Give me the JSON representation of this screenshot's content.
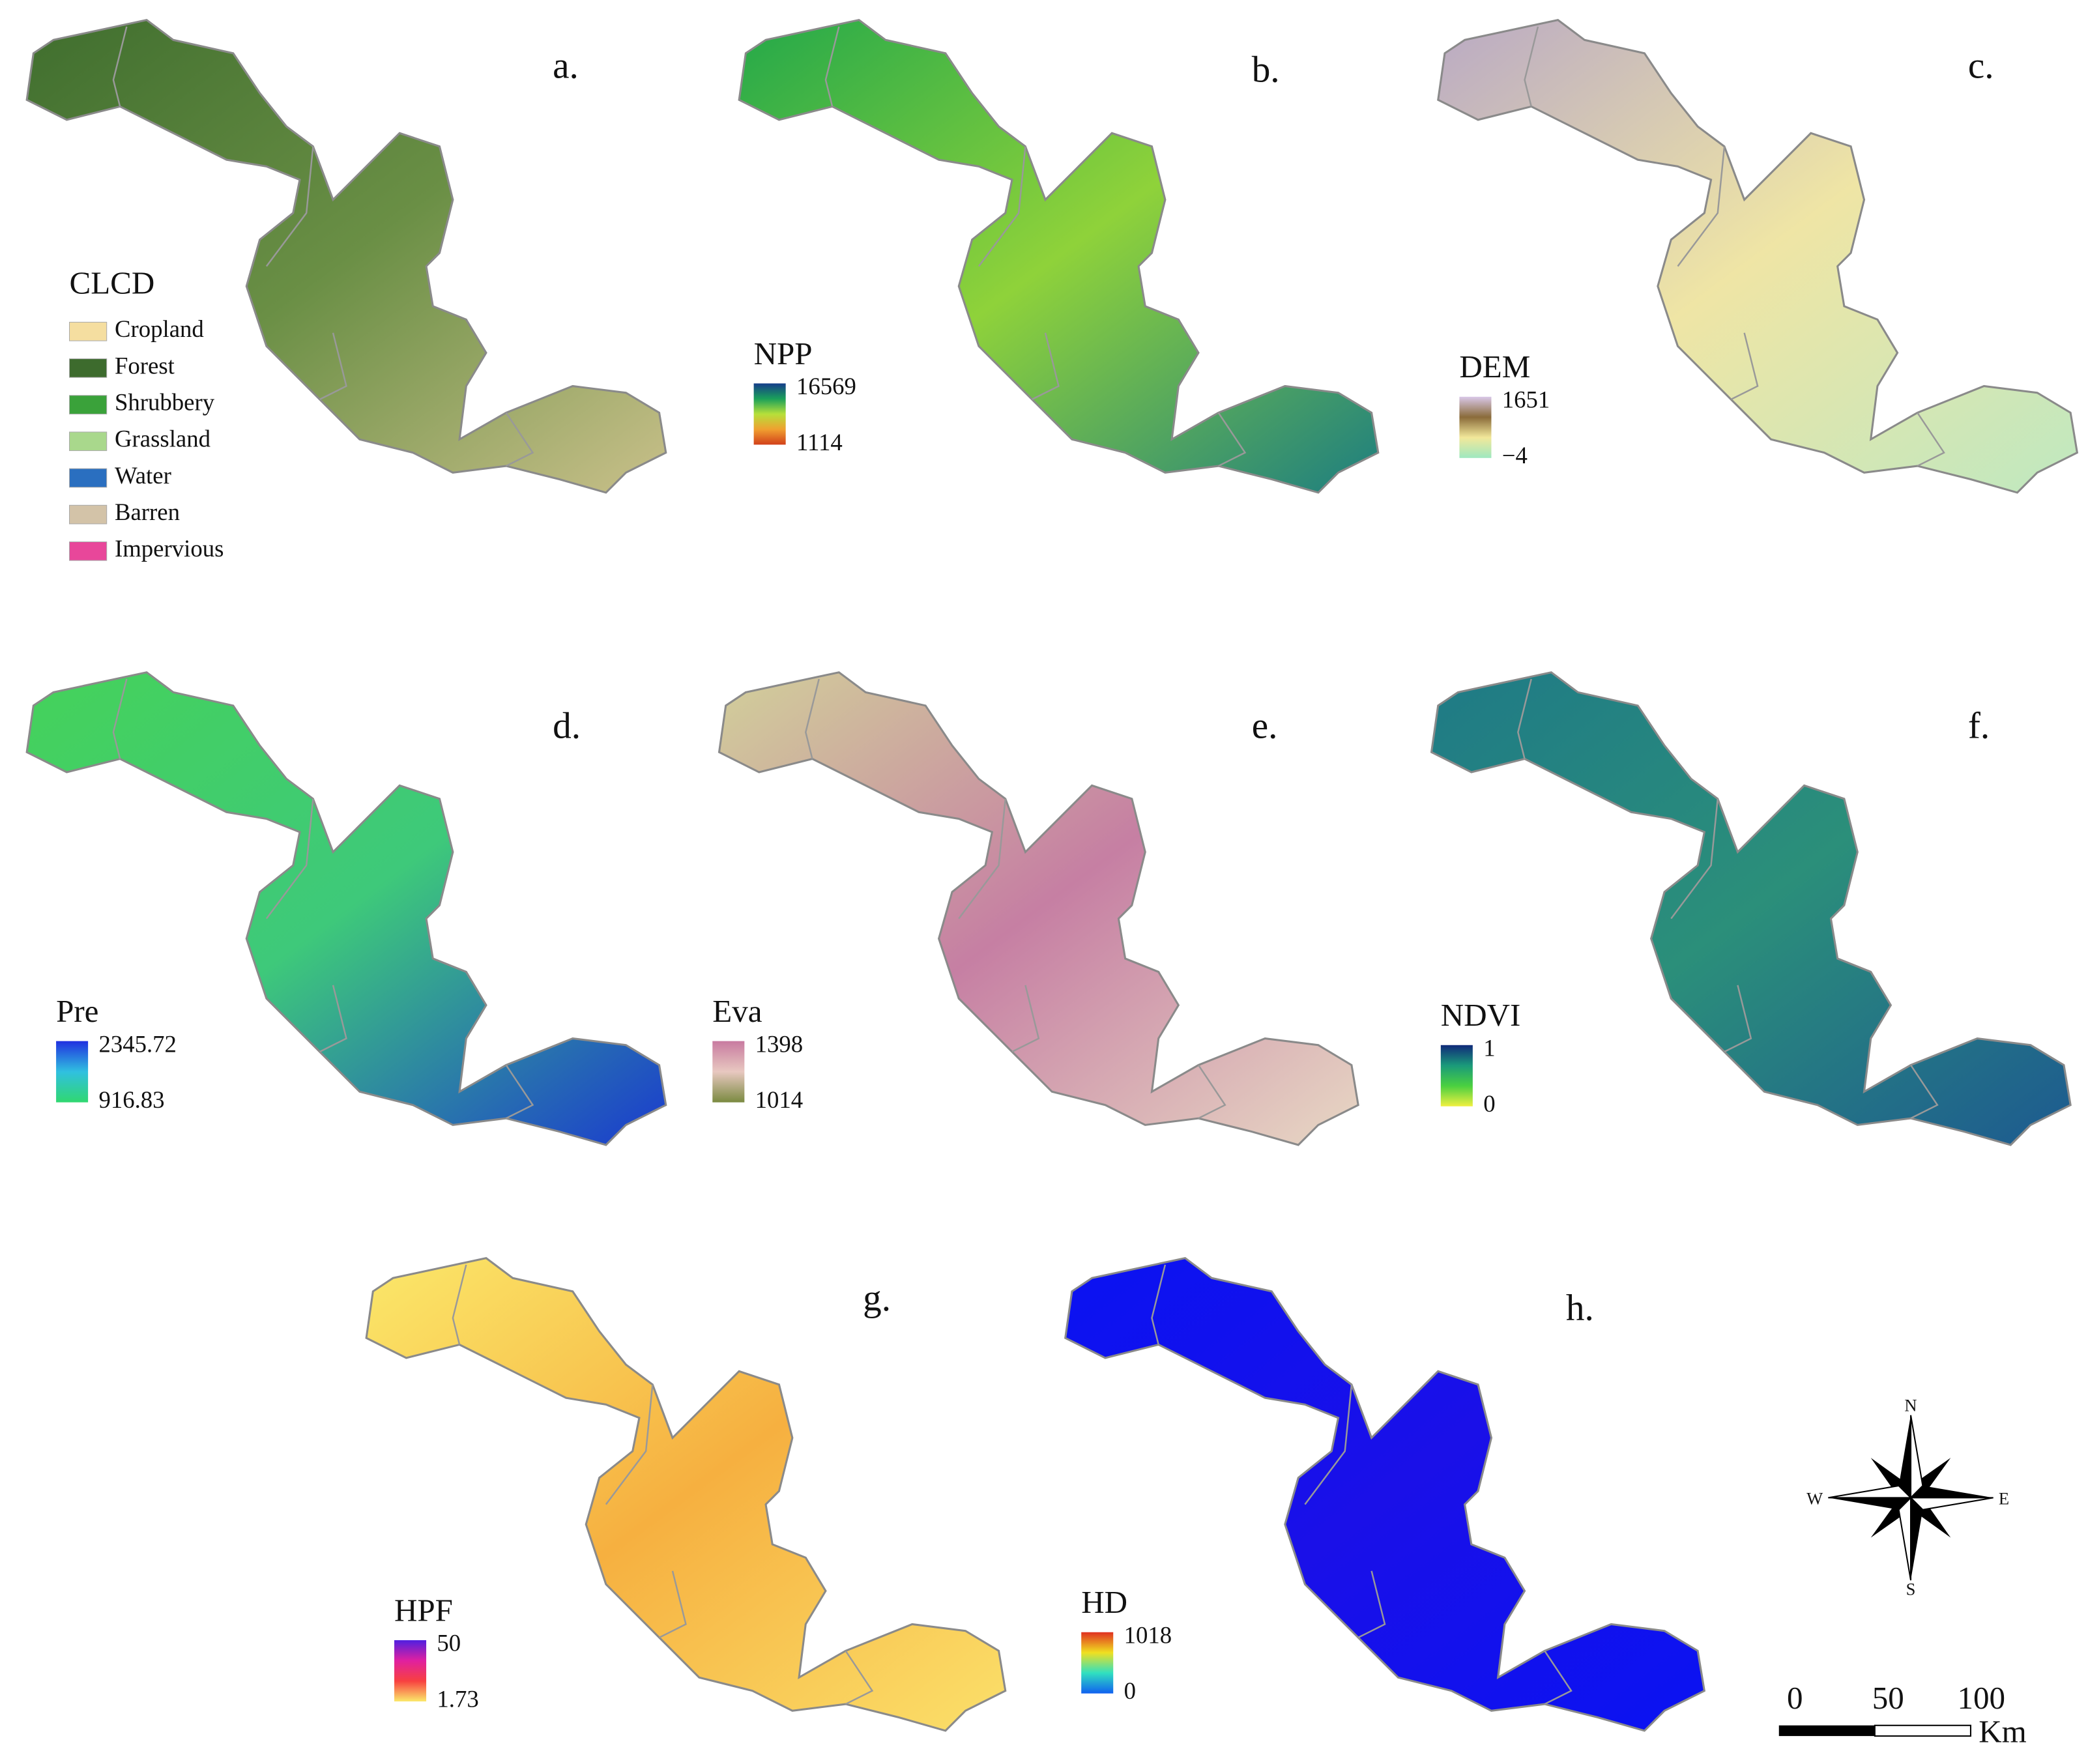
{
  "panels": [
    {
      "label": "a.",
      "fill": [
        "#3f6e2e",
        "#6a8f45",
        "#c9c08a"
      ],
      "legend": {
        "title": "CLCD",
        "items": [
          {
            "name": "Cropland",
            "color": "#f5dea0"
          },
          {
            "name": "Forest",
            "color": "#3d6b2d"
          },
          {
            "name": "Shrubbery",
            "color": "#3aa23a"
          },
          {
            "name": "Grassland",
            "color": "#a9d88c"
          },
          {
            "name": "Water",
            "color": "#2a6fc0"
          },
          {
            "name": "Barren",
            "color": "#d3c3a8"
          },
          {
            "name": "Impervious",
            "color": "#e8479a"
          }
        ]
      }
    },
    {
      "label": "b.",
      "fill": [
        "#23a84a",
        "#8fd23a",
        "#1d7e80"
      ],
      "legend": {
        "title": "NPP",
        "max": "16569",
        "min": "1114",
        "colors": [
          "#153d8a",
          "#1aa05a",
          "#b6e03a",
          "#f0a030",
          "#d2401a"
        ]
      }
    },
    {
      "label": "c.",
      "fill": [
        "#b9a9c4",
        "#efe5a5",
        "#bfe8c0"
      ],
      "legend": {
        "title": "DEM",
        "max": "1651",
        "min": "−4",
        "colors": [
          "#d9c8e8",
          "#8a6b3a",
          "#f2e89a",
          "#9ee8c0"
        ]
      }
    },
    {
      "label": "d.",
      "fill": [
        "#45d25a",
        "#3ec97a",
        "#1a3ad0"
      ],
      "legend": {
        "title": "Pre",
        "max": "2345.72",
        "min": "916.83",
        "colors": [
          "#2030e0",
          "#30c0e0",
          "#30d870"
        ]
      }
    },
    {
      "label": "e.",
      "fill": [
        "#d2d09a",
        "#c67fa3",
        "#e8d8c4"
      ],
      "legend": {
        "title": "Eva",
        "max": "1398",
        "min": "1014",
        "colors": [
          "#c87aa0",
          "#e8c8c0",
          "#7a8a40"
        ]
      }
    },
    {
      "label": "f.",
      "fill": [
        "#1f7a86",
        "#2b8f7a",
        "#1d5a90"
      ],
      "legend": {
        "title": "NDVI",
        "max": "1",
        "min": "0",
        "colors": [
          "#102a7a",
          "#1a9a7a",
          "#4ad040",
          "#f0f040"
        ]
      }
    },
    {
      "label": "g.",
      "fill": [
        "#fbe86a",
        "#f6b040",
        "#fbe06a"
      ],
      "legend": {
        "title": "HPF",
        "max": "50",
        "min": "1.73",
        "colors": [
          "#5020e0",
          "#e020a0",
          "#f84040",
          "#fbe86a"
        ]
      }
    },
    {
      "label": "h.",
      "fill": [
        "#0a12f2",
        "#1a10e8",
        "#0a12f2"
      ],
      "legend": {
        "title": "HD",
        "max": "1018",
        "min": "0",
        "colors": [
          "#e03020",
          "#f0e020",
          "#30e0c0",
          "#1060f0"
        ]
      }
    }
  ],
  "compass": {
    "n": "N",
    "s": "S",
    "e": "E",
    "w": "W"
  },
  "scale_bar": {
    "ticks": [
      "0",
      "50",
      "100"
    ],
    "unit": "Km"
  }
}
